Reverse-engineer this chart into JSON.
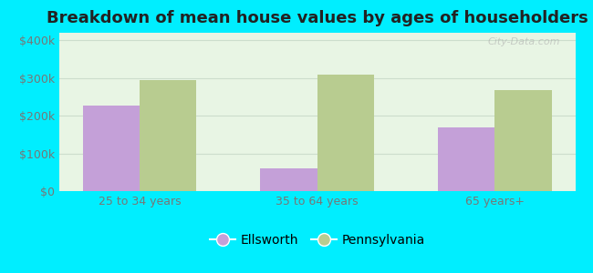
{
  "title": "Breakdown of mean house values by ages of householders",
  "categories": [
    "25 to 34 years",
    "35 to 64 years",
    "65 years+"
  ],
  "ellsworth_values": [
    228000,
    60000,
    170000
  ],
  "pennsylvania_values": [
    295000,
    308000,
    268000
  ],
  "ellsworth_color": "#c4a0d8",
  "pennsylvania_color": "#b8cc90",
  "background_outer": "#00eeff",
  "background_inner_top": "#e8f5e8",
  "background_inner_bottom": "#f8fff8",
  "yticks": [
    0,
    100000,
    200000,
    300000,
    400000
  ],
  "ytick_labels": [
    "$0",
    "$100k",
    "$200k",
    "$300k",
    "$400k"
  ],
  "ylim": [
    0,
    420000
  ],
  "bar_width": 0.32,
  "legend_labels": [
    "Ellsworth",
    "Pennsylvania"
  ],
  "title_fontsize": 13,
  "tick_fontsize": 9,
  "legend_fontsize": 10,
  "watermark": "City-Data.com",
  "grid_color": "#ccddcc",
  "tick_color": "#777777"
}
